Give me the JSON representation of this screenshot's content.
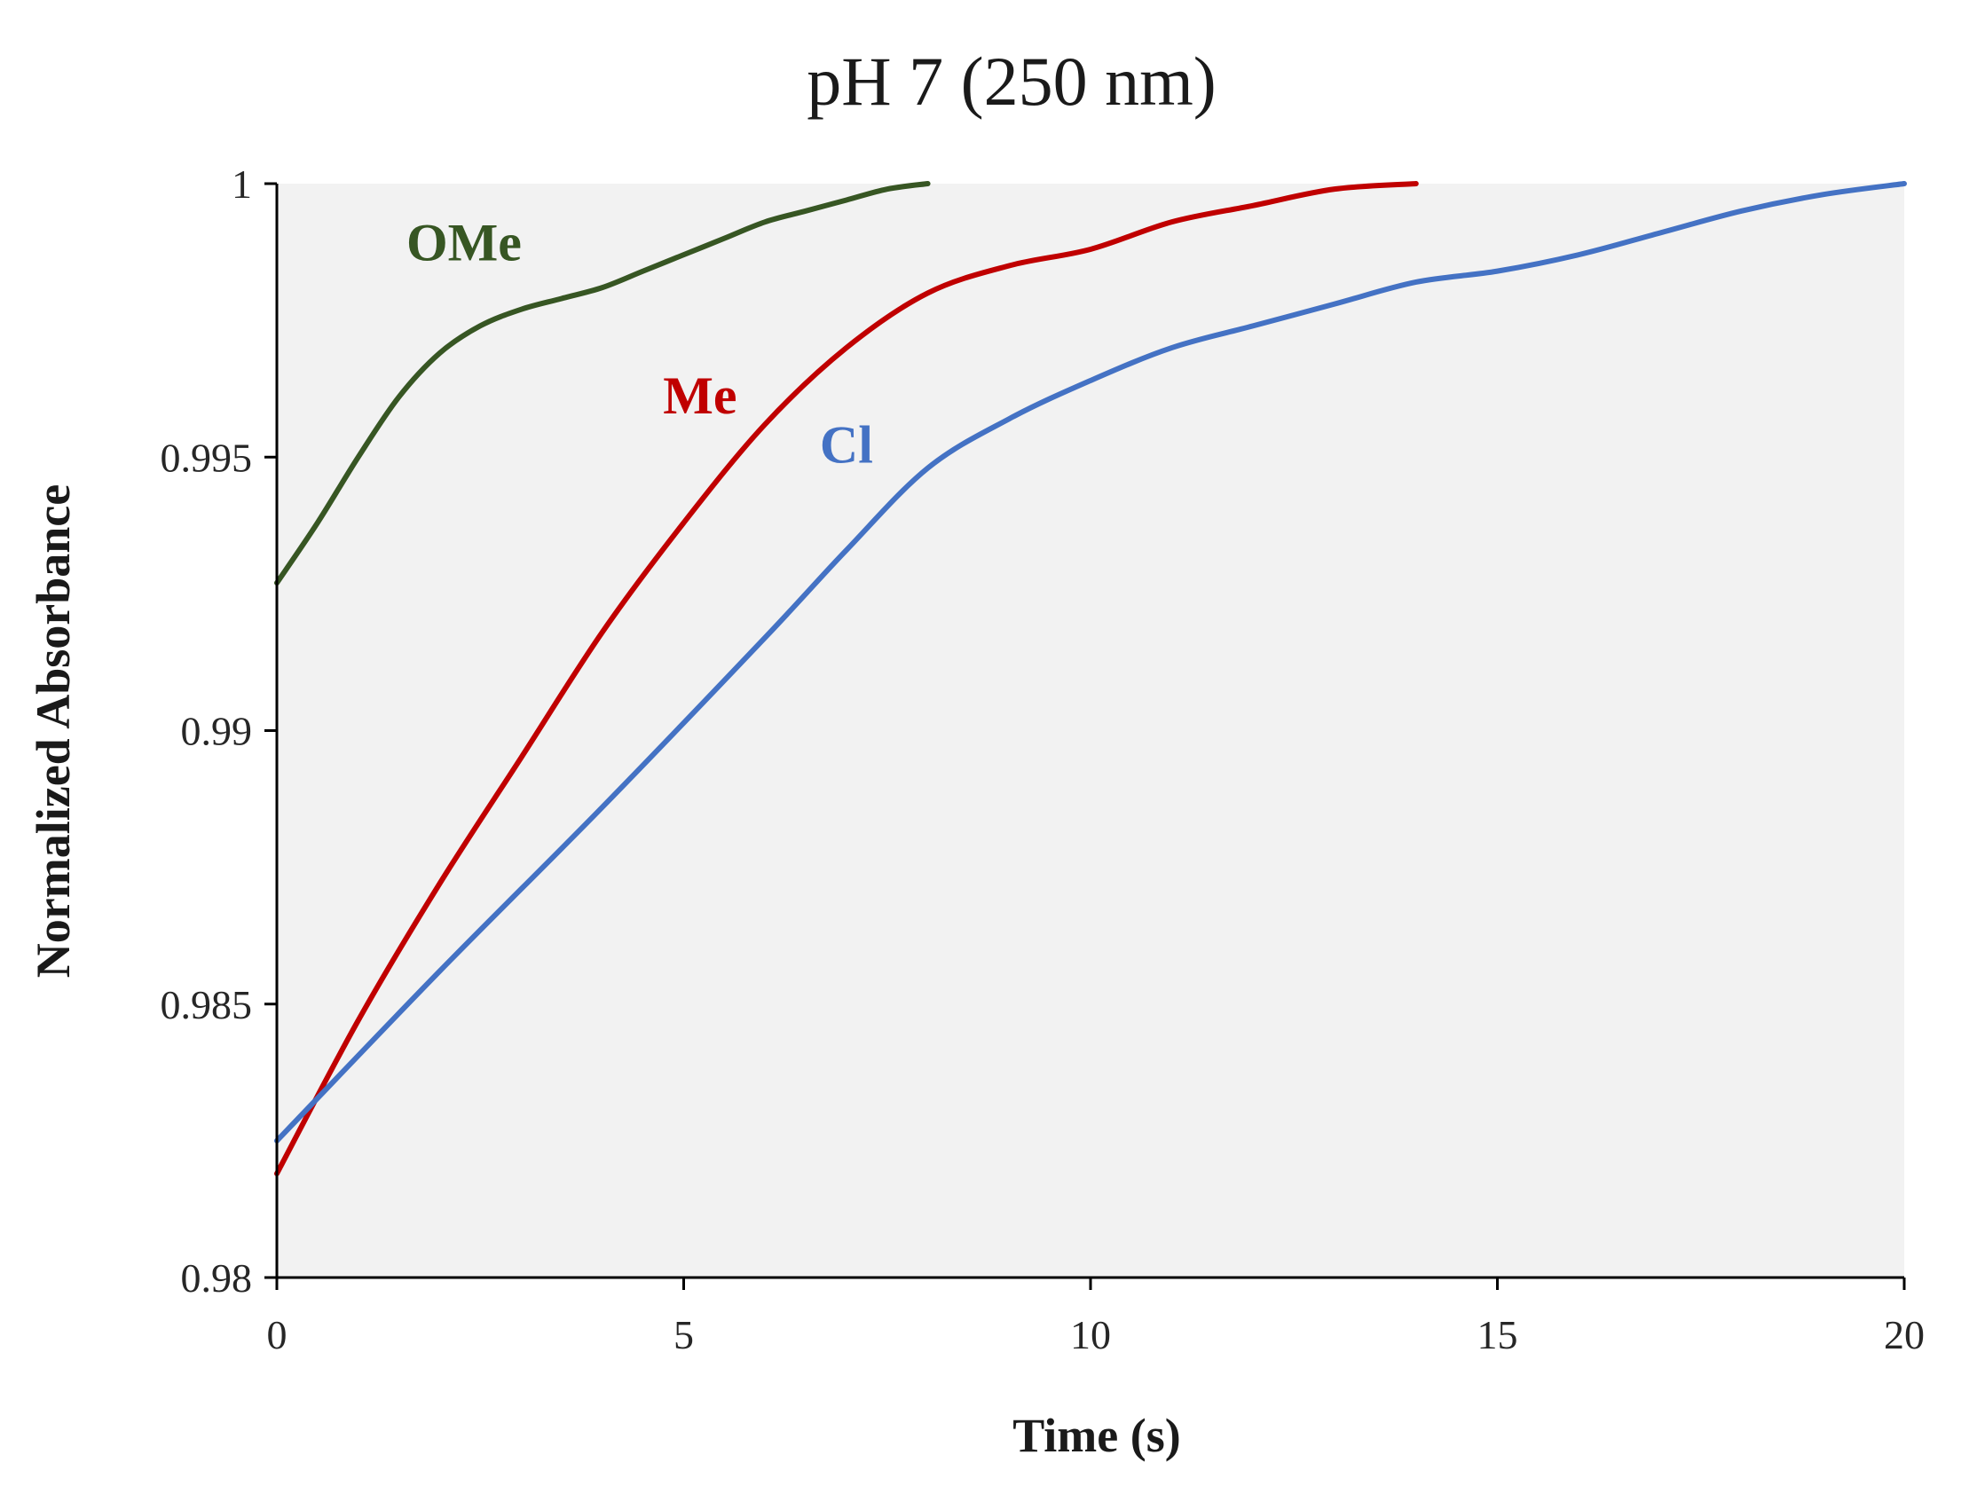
{
  "chart_data": {
    "type": "line",
    "title": "pH 7 (250 nm)",
    "xlabel": "Time (s)",
    "ylabel": "Normalized Absorbance",
    "xlim": [
      0,
      20
    ],
    "ylim": [
      0.98,
      1.0
    ],
    "xticks": [
      0,
      5,
      10,
      15,
      20
    ],
    "xtick_labels": [
      "0",
      "5",
      "10",
      "15",
      "20"
    ],
    "yticks": [
      0.98,
      0.985,
      0.99,
      0.995,
      1.0
    ],
    "ytick_labels": [
      "0.98",
      "0.985",
      "0.99",
      "0.995",
      "1"
    ],
    "grid": false,
    "plot_background": "#f2f2f2",
    "axis_color": "#000000",
    "series": [
      {
        "name": "OMe",
        "color": "#375623",
        "x": [
          0,
          0.5,
          1,
          1.5,
          2,
          2.5,
          3,
          3.5,
          4,
          4.5,
          5,
          5.5,
          6,
          6.5,
          7,
          7.5,
          8
        ],
        "y": [
          0.9927,
          0.9938,
          0.995,
          0.9961,
          0.9969,
          0.9974,
          0.9977,
          0.9979,
          0.9981,
          0.9984,
          0.9987,
          0.999,
          0.9993,
          0.9995,
          0.9997,
          0.9999,
          1.0
        ],
        "label_at": [
          2.3,
          0.9986
        ]
      },
      {
        "name": "Me",
        "color": "#c00000",
        "x": [
          0,
          1,
          2,
          3,
          4,
          5,
          6,
          7,
          8,
          9,
          10,
          11,
          12,
          13,
          14
        ],
        "y": [
          0.9819,
          0.9847,
          0.9872,
          0.9895,
          0.9918,
          0.9938,
          0.9956,
          0.997,
          0.998,
          0.9985,
          0.9988,
          0.9993,
          0.9996,
          0.9999,
          1.0
        ],
        "label_at": [
          5.2,
          0.9958
        ]
      },
      {
        "name": "Cl",
        "color": "#4472c4",
        "x": [
          0,
          2,
          4,
          6,
          7,
          8,
          9,
          10,
          11,
          12,
          13,
          14,
          15,
          16,
          17,
          18,
          19,
          20
        ],
        "y": [
          0.9825,
          0.9856,
          0.9886,
          0.9917,
          0.9933,
          0.9948,
          0.9957,
          0.9964,
          0.997,
          0.9974,
          0.9978,
          0.9982,
          0.9984,
          0.9987,
          0.9991,
          0.9995,
          0.9998,
          1.0
        ],
        "label_at": [
          7.0,
          0.9949
        ]
      }
    ]
  }
}
